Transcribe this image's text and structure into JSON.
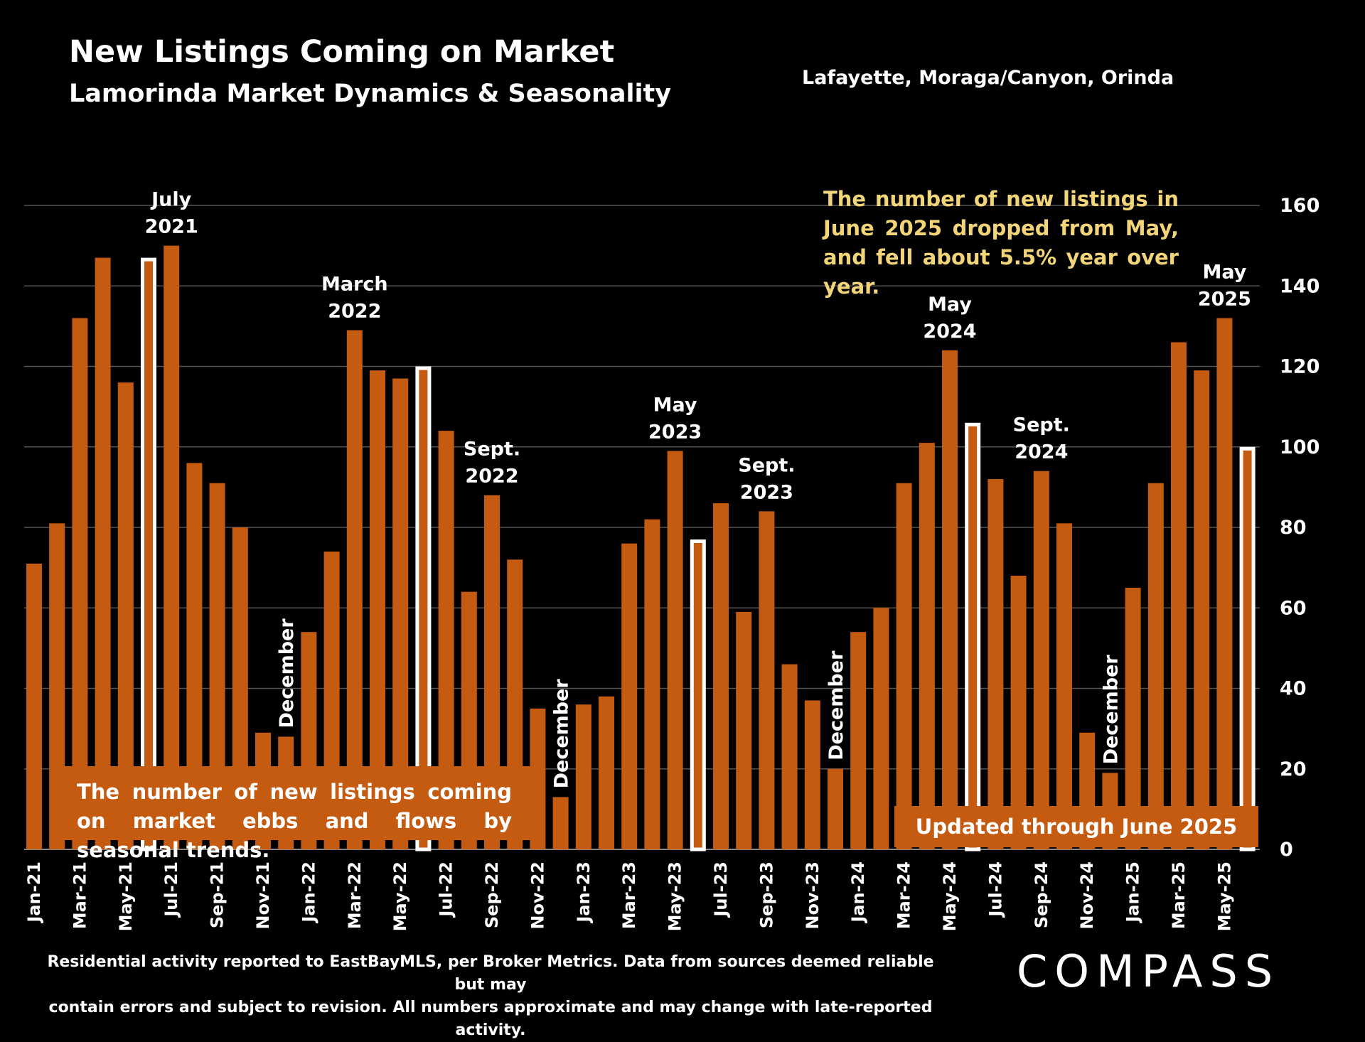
{
  "header": {
    "title": "New Listings Coming on Market",
    "subtitle": "Lamorinda Market Dynamics & Seasonality",
    "region": "Lafayette, Moraga/Canyon, Orinda"
  },
  "callout": "The number of new listings in June 2025 dropped from May, and fell about 5.5% year over year.",
  "note_left": "The number of new listings coming on market ebbs and flows by seasonal trends.",
  "note_right": "Updated through June 2025",
  "footer": {
    "line1": "Residential activity reported to EastBayMLS, per Broker Metrics. Data from sources deemed reliable but may",
    "line2": "contain errors and subject to revision. All numbers approximate and may change with late-reported activity."
  },
  "logo": "COMPASS",
  "colors": {
    "bar": "#c55a11",
    "highlight_outline": "#ffffff",
    "background": "#000000",
    "callout_text": "#f2d479"
  },
  "chart_data": {
    "type": "bar",
    "ylim": [
      0,
      160
    ],
    "yticks": [
      0,
      20,
      40,
      60,
      80,
      100,
      120,
      140,
      160
    ],
    "grid": true,
    "y_axis_position": "right",
    "categories": [
      "Jan-21",
      "Feb-21",
      "Mar-21",
      "Apr-21",
      "May-21",
      "Jun-21",
      "Jul-21",
      "Aug-21",
      "Sep-21",
      "Oct-21",
      "Nov-21",
      "Dec-21",
      "Jan-22",
      "Feb-22",
      "Mar-22",
      "Apr-22",
      "May-22",
      "Jun-22",
      "Jul-22",
      "Aug-22",
      "Sep-22",
      "Oct-22",
      "Nov-22",
      "Dec-22",
      "Jan-23",
      "Feb-23",
      "Mar-23",
      "Apr-23",
      "May-23",
      "Jun-23",
      "Jul-23",
      "Aug-23",
      "Sep-23",
      "Oct-23",
      "Nov-23",
      "Dec-23",
      "Jan-24",
      "Feb-24",
      "Mar-24",
      "Apr-24",
      "May-24",
      "Jun-24",
      "Jul-24",
      "Aug-24",
      "Sep-24",
      "Oct-24",
      "Nov-24",
      "Dec-24",
      "Jan-25",
      "Feb-25",
      "Mar-25",
      "Apr-25",
      "May-25",
      "Jun-25"
    ],
    "visible_tick_labels": [
      "Jan-21",
      "Mar-21",
      "May-21",
      "Jul-21",
      "Sep-21",
      "Nov-21",
      "Jan-22",
      "Mar-22",
      "May-22",
      "Jul-22",
      "Sep-22",
      "Nov-22",
      "Jan-23",
      "Mar-23",
      "May-23",
      "Jul-23",
      "Sep-23",
      "Nov-23",
      "Jan-24",
      "Mar-24",
      "May-24",
      "Jul-24",
      "Sep-24",
      "Nov-24",
      "Jan-25",
      "Mar-25",
      "May-25"
    ],
    "values": [
      71,
      81,
      132,
      147,
      116,
      147,
      150,
      96,
      91,
      80,
      29,
      28,
      54,
      74,
      129,
      119,
      117,
      120,
      104,
      64,
      88,
      72,
      35,
      13,
      36,
      38,
      76,
      82,
      99,
      77,
      86,
      59,
      84,
      46,
      37,
      20,
      54,
      60,
      91,
      101,
      124,
      106,
      92,
      68,
      94,
      81,
      29,
      19,
      65,
      91,
      126,
      119,
      132,
      100
    ],
    "highlighted": [
      "Jun-21",
      "Jun-22",
      "Jun-23",
      "Jun-24",
      "Jun-25"
    ],
    "annotations": [
      {
        "at": "Jul-21",
        "lines": [
          "July",
          "2021"
        ]
      },
      {
        "at": "Dec-21",
        "lines": [
          "December"
        ],
        "vertical": true
      },
      {
        "at": "Mar-22",
        "lines": [
          "March",
          "2022"
        ]
      },
      {
        "at": "Sep-22",
        "lines": [
          "Sept.",
          "2022"
        ]
      },
      {
        "at": "Dec-22",
        "lines": [
          "December"
        ],
        "vertical": true
      },
      {
        "at": "May-23",
        "lines": [
          "May",
          "2023"
        ]
      },
      {
        "at": "Sep-23",
        "lines": [
          "Sept.",
          "2023"
        ]
      },
      {
        "at": "Dec-23",
        "lines": [
          "December"
        ],
        "vertical": true
      },
      {
        "at": "May-24",
        "lines": [
          "May",
          "2024"
        ]
      },
      {
        "at": "Sep-24",
        "lines": [
          "Sept.",
          "2024"
        ]
      },
      {
        "at": "Dec-24",
        "lines": [
          "December"
        ],
        "vertical": true
      },
      {
        "at": "May-25",
        "lines": [
          "May",
          "2025"
        ]
      }
    ]
  }
}
